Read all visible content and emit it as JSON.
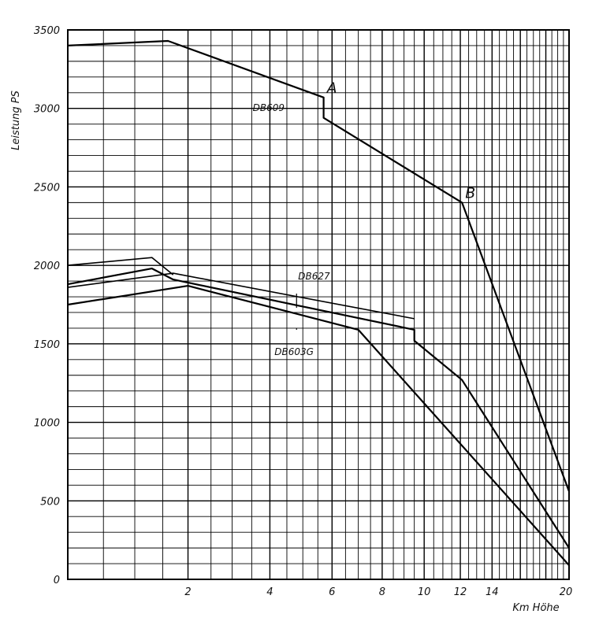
{
  "chart_data": {
    "type": "line",
    "ylabel": "Leistung PS",
    "xlabel": "Km Höhe",
    "x_scale": "log(x + 3.4)",
    "xlim": [
      0,
      20
    ],
    "ylim": [
      0,
      3500
    ],
    "x_ticks": [
      2,
      4,
      6,
      8,
      10,
      12,
      14,
      20
    ],
    "x_tick_labels": [
      "2",
      "4",
      "6",
      "8",
      "10",
      "12",
      "14",
      "20"
    ],
    "y_ticks": [
      0,
      500,
      1000,
      1500,
      2000,
      2500,
      3000,
      3500
    ],
    "y_tick_labels": [
      "0",
      "500",
      "1000",
      "1500",
      "2000",
      "2500",
      "3000",
      "3500"
    ],
    "grid": true,
    "series": [
      {
        "name": "DB609",
        "x": [
          0,
          1.6,
          5.7,
          5.7,
          12.1,
          20
        ],
        "y": [
          3400,
          3430,
          3070,
          2940,
          2400,
          560
        ]
      },
      {
        "name": "DB627",
        "x": [
          0,
          1.3,
          1.7,
          9.5,
          9.5,
          12.1,
          20
        ],
        "y": [
          1880,
          1980,
          1910,
          1590,
          1520,
          1270,
          200
        ]
      },
      {
        "name": "DB603G",
        "x": [
          0,
          2.0,
          7.0,
          20
        ],
        "y": [
          1750,
          1870,
          1590,
          90
        ]
      }
    ],
    "extra_segments": [
      {
        "x": [
          0,
          1.3,
          1.7
        ],
        "y": [
          2000,
          2050,
          1940
        ]
      },
      {
        "x": [
          0,
          1.7,
          9.5
        ],
        "y": [
          1860,
          1950,
          1660
        ]
      }
    ],
    "annotations": [
      {
        "text": "A",
        "x": 5.7,
        "y": 3070
      },
      {
        "text": "B",
        "x": 12.1,
        "y": 2400
      }
    ]
  }
}
